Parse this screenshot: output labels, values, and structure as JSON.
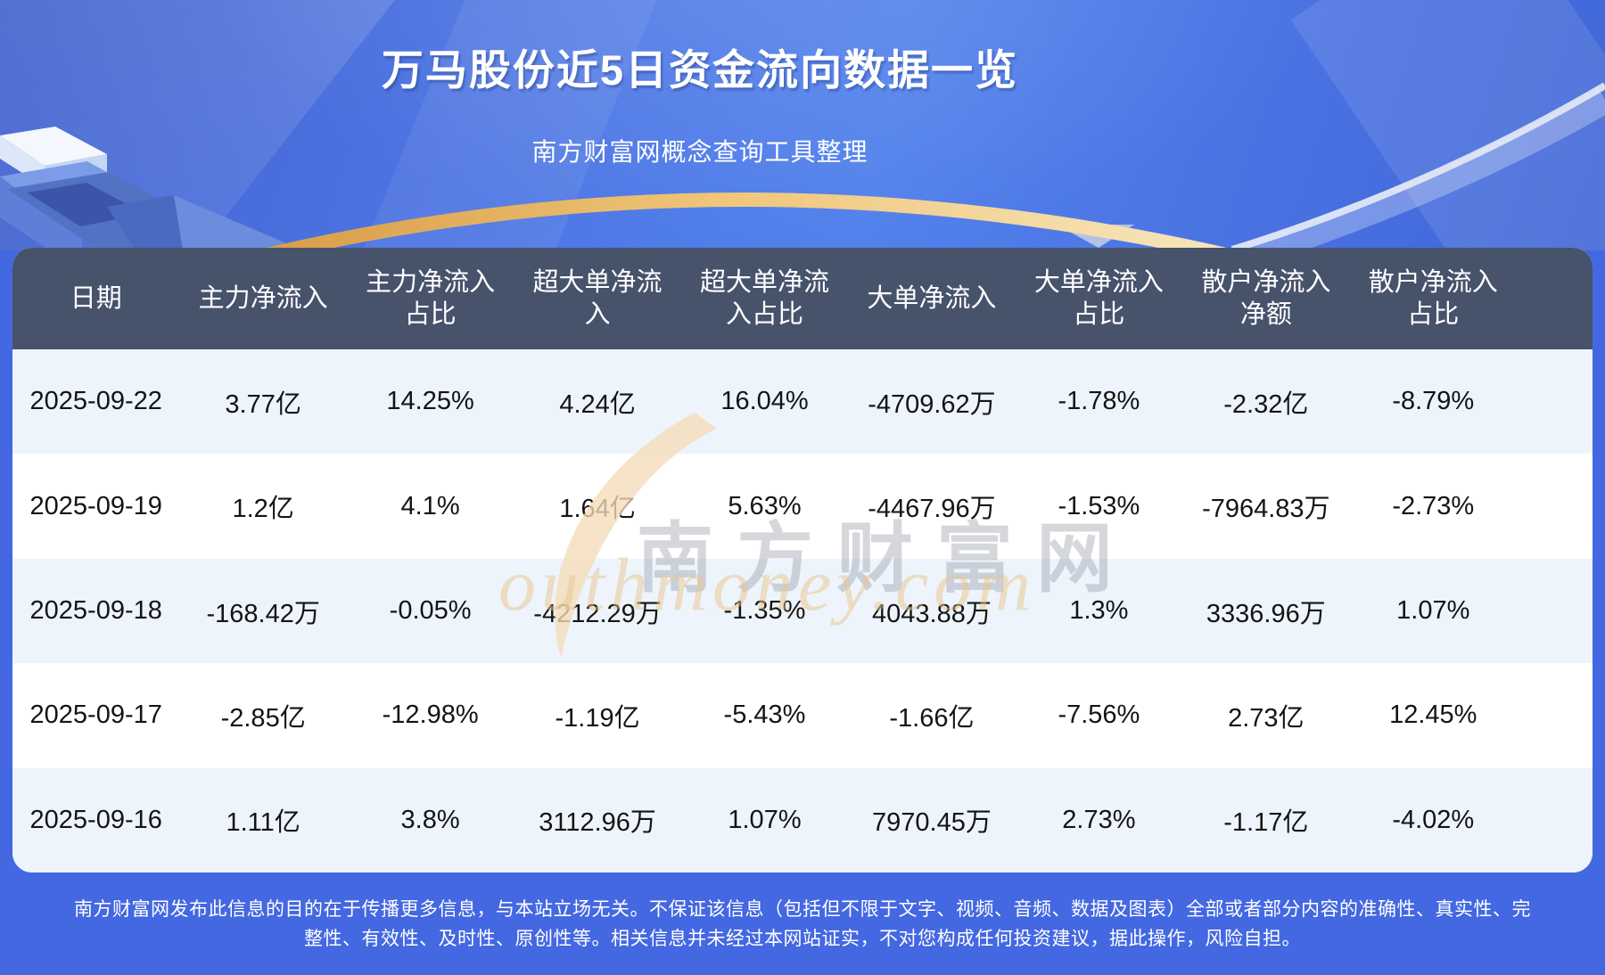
{
  "hero": {
    "title": "万马股份近5日资金流向数据一览",
    "subtitle": "南方财富网概念查询工具整理"
  },
  "watermark": {
    "brand": "南方财富网",
    "domain": "outhmoney.com"
  },
  "footer": {
    "disclaimer": "南方财富网发布此信息的目的在于传播更多信息，与本站立场无关。不保证该信息（包括但不限于文字、视频、音频、数据及图表）全部或者部分内容的准确性、真实性、完整性、有效性、及时性、原创性等。相关信息并未经过本网站证实，不对您构成任何投资建议，据此操作，风险自担。"
  },
  "colors": {
    "page_blue": "#4468E2",
    "header_bg": "#47526B",
    "row_alt": "#EDF4FC",
    "row_white": "#FFFFFF",
    "gold_arc": "#E8B866",
    "text_dark": "#141414"
  },
  "chart_data": {
    "type": "table",
    "title": "万马股份近5日资金流向数据一览",
    "source_note": "南方财富网概念查询工具整理",
    "columns": [
      "日期",
      "主力净流入",
      "主力净流入\n占比",
      "超大单净流\n入",
      "超大单净流\n入占比",
      "大单净流入",
      "大单净流入\n占比",
      "散户净流入\n净额",
      "散户净流入\n占比"
    ],
    "rows": [
      [
        "2025-09-22",
        "3.77亿",
        "14.25%",
        "4.24亿",
        "16.04%",
        "-4709.62万",
        "-1.78%",
        "-2.32亿",
        "-8.79%"
      ],
      [
        "2025-09-19",
        "1.2亿",
        "4.1%",
        "1.64亿",
        "5.63%",
        "-4467.96万",
        "-1.53%",
        "-7964.83万",
        "-2.73%"
      ],
      [
        "2025-09-18",
        "-168.42万",
        "-0.05%",
        "-4212.29万",
        "-1.35%",
        "4043.88万",
        "1.3%",
        "3336.96万",
        "1.07%"
      ],
      [
        "2025-09-17",
        "-2.85亿",
        "-12.98%",
        "-1.19亿",
        "-5.43%",
        "-1.66亿",
        "-7.56%",
        "2.73亿",
        "12.45%"
      ],
      [
        "2025-09-16",
        "1.11亿",
        "3.8%",
        "3112.96万",
        "1.07%",
        "7970.45万",
        "2.73%",
        "-1.17亿",
        "-4.02%"
      ]
    ]
  }
}
